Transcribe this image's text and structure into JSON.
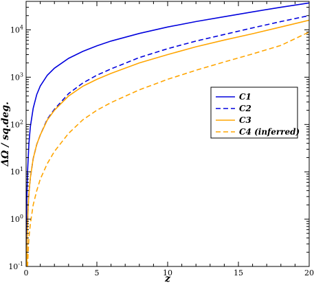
{
  "chart_data": {
    "type": "line",
    "xlabel": "z",
    "ylabel": "ΔΩ / sq.deg.",
    "xlim": [
      0,
      20
    ],
    "ylim": [
      0.1,
      40000
    ],
    "yscale": "log",
    "x_ticks": [
      0,
      5,
      10,
      15,
      20
    ],
    "x_tick_labels": [
      "0",
      "5",
      "10",
      "15",
      "20"
    ],
    "y_ticks": [
      0.1,
      1,
      10,
      100,
      1000,
      10000
    ],
    "y_tick_labels": [
      {
        "base": "10",
        "exp": "-1"
      },
      {
        "base": "10",
        "exp": "0"
      },
      {
        "base": "10",
        "exp": "1"
      },
      {
        "base": "10",
        "exp": "2"
      },
      {
        "base": "10",
        "exp": "3"
      },
      {
        "base": "10",
        "exp": "4"
      }
    ],
    "grid": false,
    "legend_position": "right-middle",
    "series": [
      {
        "name": "C1",
        "color": "#0000dd",
        "dash": "solid",
        "x": [
          0.01,
          0.02,
          0.05,
          0.1,
          0.2,
          0.3,
          0.5,
          0.75,
          1,
          1.5,
          2,
          3,
          4,
          5,
          6,
          8,
          10,
          12,
          14,
          16,
          18,
          20
        ],
        "y": [
          0.1,
          0.4,
          2.5,
          10,
          40,
          90,
          220,
          430,
          650,
          1100,
          1550,
          2500,
          3500,
          4600,
          5800,
          8400,
          11500,
          15000,
          19000,
          24000,
          30000,
          37000
        ]
      },
      {
        "name": "C2",
        "color": "#0000dd",
        "dash": "dashed",
        "x": [
          0.05,
          0.08,
          0.1,
          0.15,
          0.2,
          0.3,
          0.5,
          0.75,
          1,
          1.5,
          2,
          3,
          4,
          5,
          6,
          8,
          10,
          12,
          14,
          16,
          18,
          20
        ],
        "y": [
          0.1,
          0.45,
          0.8,
          2,
          3.5,
          7.5,
          19,
          38,
          60,
          130,
          210,
          450,
          750,
          1100,
          1500,
          2600,
          4000,
          5800,
          8000,
          11000,
          15000,
          20000
        ]
      },
      {
        "name": "C3",
        "color": "#ffa500",
        "dash": "solid",
        "x": [
          0.05,
          0.08,
          0.1,
          0.15,
          0.2,
          0.3,
          0.5,
          0.75,
          1,
          1.5,
          2,
          3,
          4,
          5,
          6,
          8,
          10,
          12,
          14,
          16,
          18,
          20
        ],
        "y": [
          0.1,
          0.45,
          0.8,
          2,
          3.5,
          7.5,
          19,
          38,
          60,
          125,
          200,
          400,
          640,
          900,
          1200,
          2000,
          3000,
          4400,
          6100,
          8300,
          11500,
          16000
        ]
      },
      {
        "name": "C4 (inferred)",
        "color": "#ffa500",
        "dash": "dashed",
        "x": [
          0.1,
          0.15,
          0.2,
          0.3,
          0.5,
          0.75,
          1,
          1.5,
          2,
          3,
          4,
          5,
          6,
          8,
          10,
          12,
          14,
          16,
          18,
          20
        ],
        "y": [
          0.1,
          0.22,
          0.4,
          0.8,
          2,
          4,
          7,
          15,
          27,
          65,
          125,
          200,
          290,
          540,
          900,
          1400,
          2100,
          3100,
          4700,
          9000
        ]
      }
    ]
  }
}
